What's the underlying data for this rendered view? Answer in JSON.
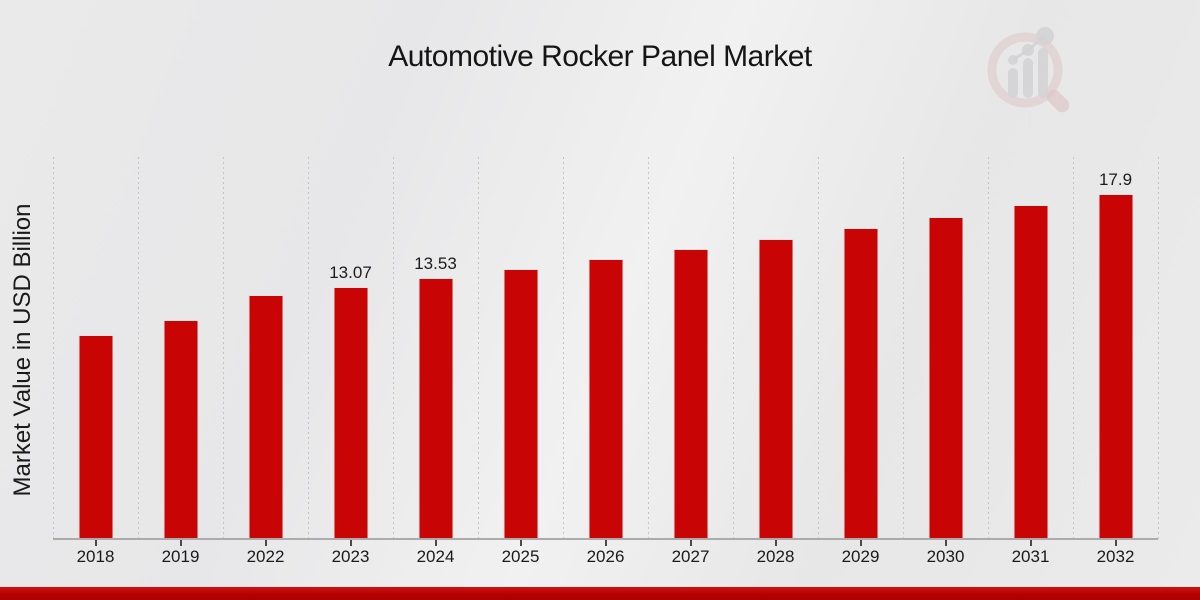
{
  "page": {
    "background_color": "#eaeaea",
    "footer_bar_color": "#b40101"
  },
  "brand": {
    "logo_name": "magnifier-bar-chart-watermark",
    "logo_ring_color": "#cf9d9d",
    "logo_bar_color": "#b9b9bd"
  },
  "chart_data": {
    "type": "bar",
    "title": "Automotive Rocker Panel Market",
    "xlabel": "",
    "ylabel": "Market Value in USD Billion",
    "legend_position": "none",
    "grid": "vertical dotted gridlines at category boundaries",
    "y_axis_ticks_visible": false,
    "bar_color": "#c80404",
    "ylim": [
      0,
      19.8
    ],
    "categories": [
      "2018",
      "2019",
      "2022",
      "2023",
      "2024",
      "2025",
      "2026",
      "2027",
      "2028",
      "2029",
      "2030",
      "2031",
      "2032"
    ],
    "values": [
      10.58,
      11.36,
      12.66,
      13.07,
      13.53,
      14.0,
      14.51,
      15.03,
      15.57,
      16.13,
      16.7,
      17.29,
      17.9
    ],
    "data_labels": [
      null,
      null,
      null,
      "13.07",
      "13.53",
      null,
      null,
      null,
      null,
      null,
      null,
      null,
      "17.9"
    ]
  }
}
